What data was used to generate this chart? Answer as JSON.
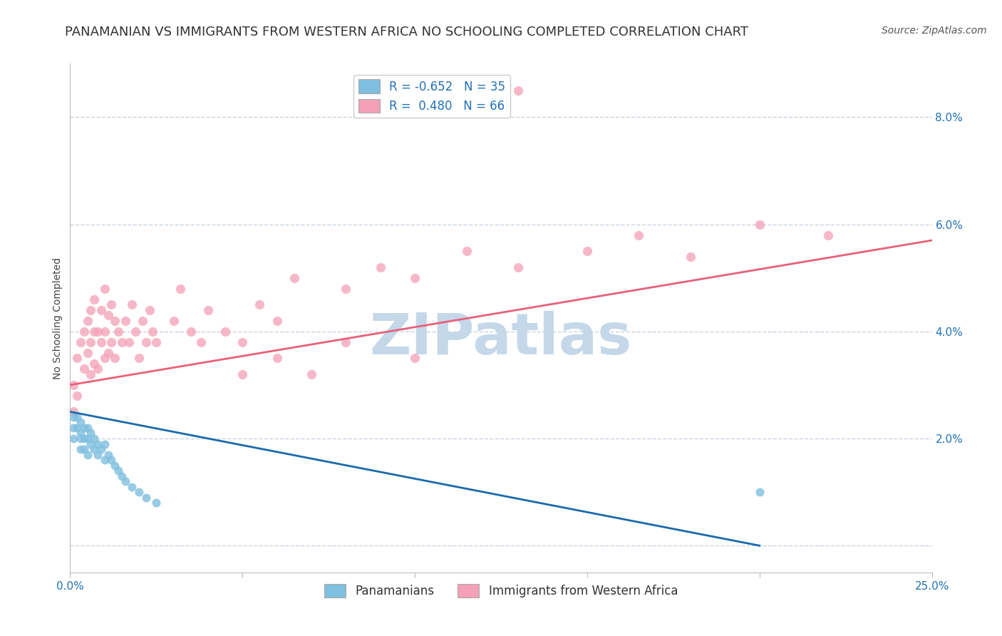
{
  "title": "PANAMANIAN VS IMMIGRANTS FROM WESTERN AFRICA NO SCHOOLING COMPLETED CORRELATION CHART",
  "source": "Source: ZipAtlas.com",
  "ylabel": "No Schooling Completed",
  "xlim": [
    0.0,
    0.25
  ],
  "ylim": [
    -0.005,
    0.09
  ],
  "plot_ylim": [
    -0.005,
    0.09
  ],
  "xticks": [
    0.0,
    0.05,
    0.1,
    0.15,
    0.2,
    0.25
  ],
  "yticks": [
    0.0,
    0.02,
    0.04,
    0.06,
    0.08
  ],
  "background_color": "#ffffff",
  "watermark": "ZIPatlas",
  "watermark_color": "#c5d8ea",
  "color_blue": "#7fbfdf",
  "color_pink": "#f4a0b8",
  "color_blue_line": "#1a6aab",
  "color_pink_line": "#e8607a",
  "grid_color": "#c8d4e0",
  "title_fontsize": 13,
  "axis_label_fontsize": 10,
  "tick_fontsize": 11,
  "legend_fontsize": 12,
  "source_fontsize": 10,
  "pan_x": [
    0.001,
    0.001,
    0.001,
    0.002,
    0.002,
    0.003,
    0.003,
    0.003,
    0.003,
    0.004,
    0.004,
    0.004,
    0.005,
    0.005,
    0.005,
    0.006,
    0.006,
    0.007,
    0.007,
    0.008,
    0.008,
    0.009,
    0.01,
    0.01,
    0.011,
    0.012,
    0.013,
    0.014,
    0.015,
    0.016,
    0.018,
    0.02,
    0.022,
    0.025,
    0.2
  ],
  "pan_y": [
    0.024,
    0.022,
    0.02,
    0.024,
    0.022,
    0.023,
    0.021,
    0.02,
    0.018,
    0.022,
    0.02,
    0.018,
    0.022,
    0.02,
    0.017,
    0.021,
    0.019,
    0.02,
    0.018,
    0.019,
    0.017,
    0.018,
    0.019,
    0.016,
    0.017,
    0.016,
    0.015,
    0.014,
    0.013,
    0.012,
    0.011,
    0.01,
    0.009,
    0.008,
    0.01
  ],
  "wa_x": [
    0.001,
    0.001,
    0.002,
    0.002,
    0.003,
    0.004,
    0.004,
    0.005,
    0.005,
    0.006,
    0.006,
    0.006,
    0.007,
    0.007,
    0.007,
    0.008,
    0.008,
    0.009,
    0.009,
    0.01,
    0.01,
    0.01,
    0.011,
    0.011,
    0.012,
    0.012,
    0.013,
    0.013,
    0.014,
    0.015,
    0.016,
    0.017,
    0.018,
    0.019,
    0.02,
    0.021,
    0.022,
    0.023,
    0.024,
    0.025,
    0.03,
    0.032,
    0.035,
    0.038,
    0.04,
    0.045,
    0.05,
    0.055,
    0.06,
    0.065,
    0.08,
    0.09,
    0.1,
    0.115,
    0.13,
    0.15,
    0.165,
    0.18,
    0.2,
    0.22,
    0.13,
    0.05,
    0.06,
    0.07,
    0.08,
    0.1
  ],
  "wa_y": [
    0.03,
    0.025,
    0.035,
    0.028,
    0.038,
    0.033,
    0.04,
    0.036,
    0.042,
    0.032,
    0.038,
    0.044,
    0.034,
    0.04,
    0.046,
    0.033,
    0.04,
    0.038,
    0.044,
    0.035,
    0.04,
    0.048,
    0.036,
    0.043,
    0.038,
    0.045,
    0.035,
    0.042,
    0.04,
    0.038,
    0.042,
    0.038,
    0.045,
    0.04,
    0.035,
    0.042,
    0.038,
    0.044,
    0.04,
    0.038,
    0.042,
    0.048,
    0.04,
    0.038,
    0.044,
    0.04,
    0.038,
    0.045,
    0.042,
    0.05,
    0.048,
    0.052,
    0.05,
    0.055,
    0.052,
    0.055,
    0.058,
    0.054,
    0.06,
    0.058,
    0.085,
    0.032,
    0.035,
    0.032,
    0.038,
    0.035
  ],
  "pan_line_x": [
    0.0,
    0.2
  ],
  "pan_line_y": [
    0.025,
    0.0
  ],
  "wa_line_x": [
    0.0,
    0.25
  ],
  "wa_line_y": [
    0.03,
    0.057
  ]
}
